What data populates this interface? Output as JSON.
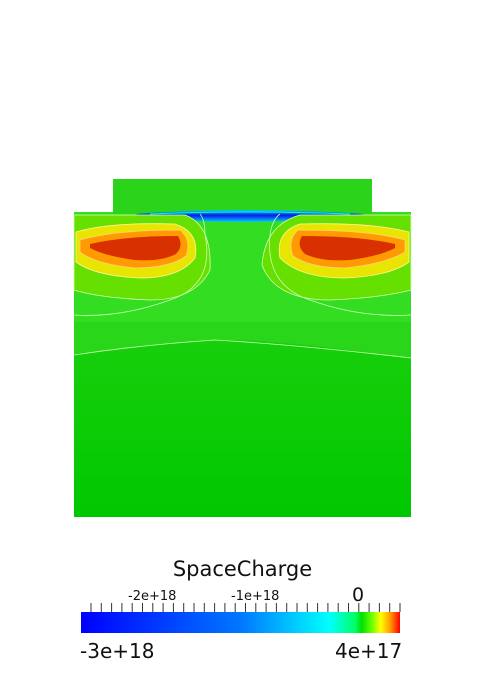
{
  "legend": {
    "title": "SpaceCharge",
    "min_label": "-3e+18",
    "max_label": "4e+17",
    "tick_labels": [
      "-2e+18",
      "-1e+18",
      "0"
    ],
    "colormap": [
      "#0000ff",
      "#0077ff",
      "#00ffff",
      "#00ff66",
      "#00e000",
      "#66ff00",
      "#ffff00",
      "#ff9900",
      "#ff0000"
    ]
  },
  "field_colors": {
    "background": "#00cc00",
    "light_green": "#33dd22",
    "yellow_green": "#a8e000",
    "yellow": "#ffe000",
    "orange": "#ff8a00",
    "red": "#d93000",
    "negative_blue": "#0a1ee6",
    "cyan": "#00d2ff"
  }
}
